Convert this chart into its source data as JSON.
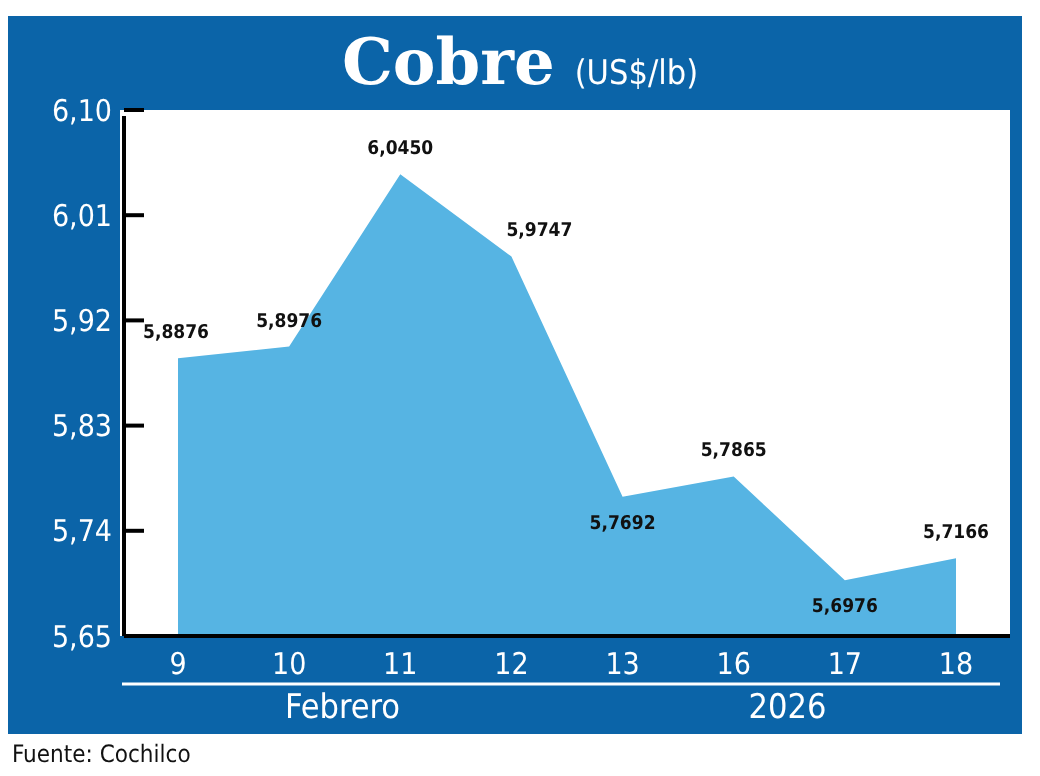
{
  "chart_data": {
    "type": "area",
    "title": "Cobre",
    "subtitle": "(US$/lb)",
    "categories": [
      "9",
      "10",
      "11",
      "12",
      "13",
      "16",
      "17",
      "18"
    ],
    "values": [
      5.8876,
      5.8976,
      6.045,
      5.9747,
      5.7692,
      5.7865,
      5.6976,
      5.7166
    ],
    "value_labels": [
      "5,8876",
      "5,8976",
      "6,0450",
      "5,9747",
      "5,7692",
      "5,7865",
      "5,6976",
      "5,7166"
    ],
    "color": "#56b4e3",
    "ylim": [
      5.65,
      6.1
    ],
    "yticks": [
      {
        "value": 5.65,
        "label": "5,65"
      },
      {
        "value": 5.74,
        "label": "5,74"
      },
      {
        "value": 5.83,
        "label": "5,83"
      },
      {
        "value": 5.92,
        "label": "5,92"
      },
      {
        "value": 6.01,
        "label": "6,01"
      },
      {
        "value": 6.1,
        "label": "6,10"
      }
    ],
    "grid": false,
    "annotations": [
      "Febrero",
      "2026",
      "Fuente: Cochilco"
    ]
  }
}
